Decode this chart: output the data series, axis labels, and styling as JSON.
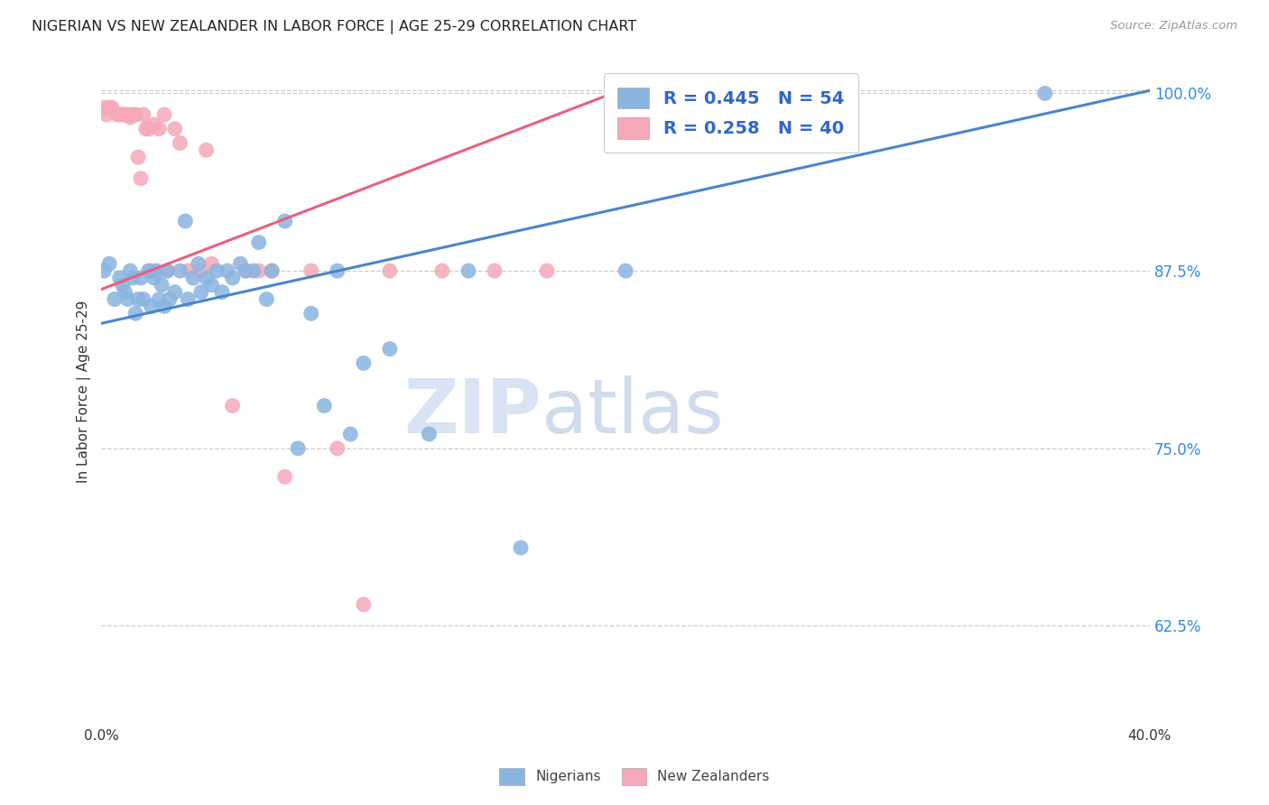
{
  "title": "NIGERIAN VS NEW ZEALANDER IN LABOR FORCE | AGE 25-29 CORRELATION CHART",
  "source": "Source: ZipAtlas.com",
  "ylabel": "In Labor Force | Age 25-29",
  "xlim": [
    0.0,
    0.4
  ],
  "ylim": [
    0.555,
    1.025
  ],
  "yticks": [
    0.625,
    0.75,
    0.875,
    1.0
  ],
  "ytick_labels": [
    "62.5%",
    "75.0%",
    "87.5%",
    "100.0%"
  ],
  "xticks": [
    0.0,
    0.05,
    0.1,
    0.15,
    0.2,
    0.25,
    0.3,
    0.35,
    0.4
  ],
  "xtick_labels": [
    "0.0%",
    "",
    "",
    "",
    "",
    "",
    "",
    "",
    "40.0%"
  ],
  "nigerian_color": "#8ab4e0",
  "nz_color": "#f4a8b8",
  "nigerian_line_color": "#4a86c8",
  "nz_line_color": "#e86080",
  "nigerian_R": 0.445,
  "nigerian_N": 54,
  "nz_R": 0.258,
  "nz_N": 40,
  "watermark_zip": "ZIP",
  "watermark_atlas": "atlas",
  "legend_label_nigerian": "Nigerians",
  "legend_label_nz": "New Zealanders",
  "nigerian_line_x0": 0.0,
  "nigerian_line_y0": 0.838,
  "nigerian_line_x1": 0.4,
  "nigerian_line_y1": 1.002,
  "nz_line_x0": 0.0,
  "nz_line_y0": 0.862,
  "nz_line_x1": 0.195,
  "nz_line_y1": 1.0,
  "nigerian_pts_x": [
    0.001,
    0.003,
    0.005,
    0.007,
    0.008,
    0.009,
    0.01,
    0.011,
    0.012,
    0.013,
    0.014,
    0.015,
    0.016,
    0.018,
    0.019,
    0.02,
    0.021,
    0.022,
    0.023,
    0.024,
    0.025,
    0.026,
    0.028,
    0.03,
    0.032,
    0.033,
    0.035,
    0.037,
    0.038,
    0.04,
    0.042,
    0.044,
    0.046,
    0.048,
    0.05,
    0.053,
    0.055,
    0.058,
    0.06,
    0.063,
    0.065,
    0.07,
    0.075,
    0.08,
    0.085,
    0.09,
    0.095,
    0.1,
    0.11,
    0.125,
    0.14,
    0.16,
    0.2,
    0.36
  ],
  "nigerian_pts_y": [
    0.875,
    0.88,
    0.855,
    0.87,
    0.865,
    0.86,
    0.855,
    0.875,
    0.87,
    0.845,
    0.855,
    0.87,
    0.855,
    0.875,
    0.85,
    0.87,
    0.875,
    0.855,
    0.865,
    0.85,
    0.875,
    0.855,
    0.86,
    0.875,
    0.91,
    0.855,
    0.87,
    0.88,
    0.86,
    0.87,
    0.865,
    0.875,
    0.86,
    0.875,
    0.87,
    0.88,
    0.875,
    0.875,
    0.895,
    0.855,
    0.875,
    0.91,
    0.75,
    0.845,
    0.78,
    0.875,
    0.76,
    0.81,
    0.82,
    0.76,
    0.875,
    0.68,
    0.875,
    1.0
  ],
  "nz_pts_x": [
    0.001,
    0.002,
    0.003,
    0.004,
    0.006,
    0.007,
    0.008,
    0.009,
    0.01,
    0.011,
    0.012,
    0.013,
    0.014,
    0.015,
    0.016,
    0.017,
    0.018,
    0.019,
    0.02,
    0.022,
    0.024,
    0.025,
    0.028,
    0.03,
    0.033,
    0.038,
    0.04,
    0.042,
    0.05,
    0.055,
    0.06,
    0.065,
    0.07,
    0.08,
    0.09,
    0.1,
    0.11,
    0.13,
    0.15,
    0.17
  ],
  "nz_pts_y": [
    0.99,
    0.985,
    0.99,
    0.99,
    0.985,
    0.985,
    0.985,
    0.985,
    0.985,
    0.983,
    0.985,
    0.985,
    0.955,
    0.94,
    0.985,
    0.975,
    0.975,
    0.875,
    0.978,
    0.975,
    0.985,
    0.875,
    0.975,
    0.965,
    0.875,
    0.875,
    0.96,
    0.88,
    0.78,
    0.875,
    0.875,
    0.875,
    0.73,
    0.875,
    0.75,
    0.64,
    0.875,
    0.875,
    0.875,
    0.875
  ]
}
